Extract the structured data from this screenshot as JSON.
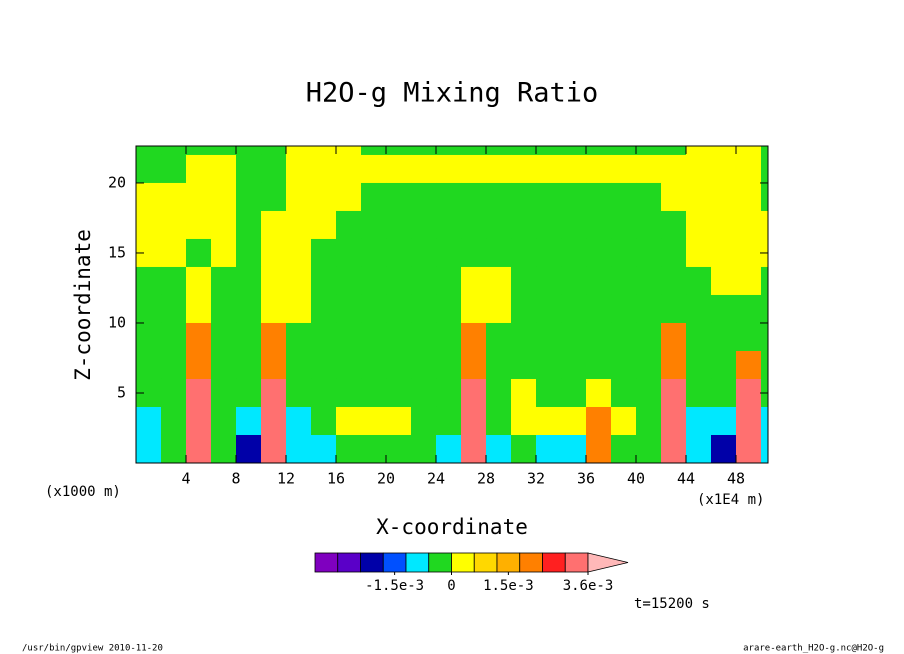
{
  "chart_data": {
    "type": "contour",
    "title": "H2O-g Mixing Ratio",
    "xlabel": "X-coordinate",
    "ylabel": "Z-coordinate",
    "x_unit_label": "(x1000 m)",
    "x_scale_label": "(x1E4 m)",
    "time_label": "t=15200 s",
    "footer_left": "/usr/bin/gpview  2010-11-20",
    "footer_right": "arare-earth_H2O-g.nc@H2O-g",
    "xlim": [
      0,
      50.56
    ],
    "ylim": [
      0,
      22.64
    ],
    "xticks": [
      4,
      8,
      12,
      16,
      20,
      24,
      28,
      32,
      36,
      40,
      44,
      48
    ],
    "yticks": [
      5,
      10,
      15,
      20
    ],
    "x": [
      1,
      3,
      5,
      7,
      9,
      11,
      13,
      15,
      17,
      19,
      21,
      23,
      25,
      27,
      29,
      31,
      33,
      35,
      37,
      39,
      41,
      43,
      45,
      47,
      49,
      51
    ],
    "z": [
      23,
      21,
      19,
      17,
      15,
      13,
      11,
      9,
      7,
      5,
      3,
      1
    ],
    "values": [
      [
        -0.0003,
        -0.0003,
        -0.0003,
        -0.0003,
        -0.0003,
        -0.0003,
        0.0003,
        0.0003,
        0.0003,
        -0.0003,
        -0.0003,
        -0.0003,
        -0.0003,
        -0.0003,
        -0.0003,
        -0.0003,
        -0.0003,
        -0.0003,
        -0.0003,
        -0.0003,
        -0.0003,
        -0.0003,
        0.0003,
        0.0003,
        0.0003,
        -0.0003
      ],
      [
        -0.0003,
        -0.0003,
        0.0003,
        0.0003,
        -0.0003,
        -0.0003,
        0.0003,
        0.0003,
        0.0003,
        0.0003,
        0.0003,
        0.0003,
        0.0003,
        0.0003,
        0.0003,
        0.0003,
        0.0003,
        0.0003,
        0.0003,
        0.0003,
        0.0003,
        0.0003,
        0.0003,
        0.0003,
        0.0003,
        -0.0003
      ],
      [
        0.0003,
        0.0003,
        0.0003,
        0.0003,
        -0.0003,
        -0.0003,
        0.0003,
        0.0003,
        0.0003,
        -0.0003,
        -0.0003,
        -0.0003,
        -0.0003,
        -0.0003,
        -0.0003,
        -0.0003,
        -0.0003,
        -0.0003,
        -0.0003,
        -0.0003,
        -0.0003,
        0.0003,
        0.0003,
        0.0003,
        0.0003,
        -0.0003
      ],
      [
        0.0003,
        0.0003,
        0.0003,
        0.0003,
        -0.0003,
        0.0003,
        0.0003,
        0.0003,
        -0.0003,
        -0.0003,
        -0.0003,
        -0.0003,
        -0.0003,
        -0.0003,
        -0.0003,
        -0.0003,
        -0.0003,
        -0.0003,
        -0.0003,
        -0.0003,
        -0.0003,
        -0.0003,
        0.0003,
        0.0003,
        0.0003,
        0.0003
      ],
      [
        0.0003,
        0.0003,
        -0.0003,
        0.0003,
        -0.0003,
        0.0003,
        0.0003,
        -0.0003,
        -0.0003,
        -0.0003,
        -0.0003,
        -0.0003,
        -0.0003,
        -0.0003,
        -0.0003,
        -0.0003,
        -0.0003,
        -0.0003,
        -0.0003,
        -0.0003,
        -0.0003,
        -0.0003,
        0.0003,
        0.0003,
        0.0003,
        0.0003
      ],
      [
        -0.0003,
        -0.0003,
        0.0003,
        -0.0003,
        -0.0003,
        0.0003,
        0.0003,
        -0.0003,
        -0.0003,
        -0.0003,
        -0.0003,
        -0.0003,
        -0.0003,
        0.0003,
        0.0003,
        -0.0003,
        -0.0003,
        -0.0003,
        -0.0003,
        -0.0003,
        -0.0003,
        -0.0003,
        -0.0003,
        0.0003,
        0.0003,
        -0.0003
      ],
      [
        -0.0003,
        -0.0003,
        0.0003,
        -0.0003,
        -0.0003,
        0.0003,
        0.0003,
        -0.0003,
        -0.0003,
        -0.0003,
        -0.0003,
        -0.0003,
        -0.0003,
        0.0003,
        0.0003,
        -0.0003,
        -0.0003,
        -0.0003,
        -0.0003,
        -0.0003,
        -0.0003,
        -0.0003,
        -0.0003,
        -0.0003,
        -0.0003,
        -0.0003
      ],
      [
        -0.0003,
        -0.0003,
        0.0021,
        -0.0003,
        -0.0003,
        0.0021,
        -0.0003,
        -0.0003,
        -0.0003,
        -0.0003,
        -0.0003,
        -0.0003,
        -0.0003,
        0.0021,
        -0.0003,
        -0.0003,
        -0.0003,
        -0.0003,
        -0.0003,
        -0.0003,
        -0.0003,
        0.0021,
        -0.0003,
        -0.0003,
        -0.0003,
        -0.0003
      ],
      [
        -0.0003,
        -0.0003,
        0.0021,
        -0.0003,
        -0.0003,
        0.0021,
        -0.0003,
        -0.0003,
        -0.0003,
        -0.0003,
        -0.0003,
        -0.0003,
        -0.0003,
        0.0021,
        -0.0003,
        -0.0003,
        -0.0003,
        -0.0003,
        -0.0003,
        -0.0003,
        -0.0003,
        0.0021,
        -0.0003,
        -0.0003,
        0.0021,
        -0.0003
      ],
      [
        -0.0003,
        -0.0003,
        0.0033,
        -0.0003,
        -0.0003,
        0.0033,
        -0.0003,
        -0.0003,
        -0.0003,
        -0.0003,
        -0.0003,
        -0.0003,
        -0.0003,
        0.0033,
        -0.0003,
        0.0003,
        -0.0003,
        -0.0003,
        0.0003,
        -0.0003,
        -0.0003,
        0.0033,
        -0.0003,
        -0.0003,
        0.0033,
        -0.0003
      ],
      [
        -0.0009,
        -0.0003,
        0.0033,
        -0.0003,
        -0.0009,
        0.0033,
        -0.0009,
        -0.0003,
        0.0003,
        0.0003,
        0.0003,
        -0.0003,
        -0.0003,
        0.0033,
        -0.0003,
        0.0003,
        0.0003,
        0.0003,
        0.0021,
        0.0003,
        -0.0003,
        0.0033,
        -0.0009,
        -0.0009,
        0.0033,
        -0.0009
      ],
      [
        -0.0009,
        -0.0003,
        0.0033,
        -0.0003,
        -0.0021,
        0.0033,
        -0.0009,
        -0.0009,
        -0.0003,
        -0.0003,
        -0.0003,
        -0.0003,
        -0.0009,
        0.0033,
        -0.0009,
        -0.0003,
        -0.0009,
        -0.0009,
        0.0021,
        -0.0003,
        -0.0003,
        0.0033,
        -0.0009,
        -0.0021,
        0.0033,
        -0.0009
      ]
    ],
    "colorbar": {
      "levels": [
        -0.0036,
        -0.003,
        -0.0024,
        -0.0018,
        -0.0012,
        -0.0006,
        0,
        0.0006,
        0.0012,
        0.0018,
        0.0024,
        0.003,
        0.0036
      ],
      "colors": [
        "#7f00bf",
        "#5a00c8",
        "#0000a8",
        "#0050ff",
        "#00e8ff",
        "#20d820",
        "#ffff00",
        "#ffd800",
        "#ffb000",
        "#ff8000",
        "#ff2020",
        "#ff7070"
      ],
      "extend_color": "#ffb8b8",
      "ticks": [
        {
          "value": -0.0015,
          "label": "-1.5e-3"
        },
        0,
        {
          "value": 0.0015,
          "label": "1.5e-3"
        },
        {
          "value": 0.0036,
          "label": "3.6e-3"
        }
      ]
    }
  }
}
